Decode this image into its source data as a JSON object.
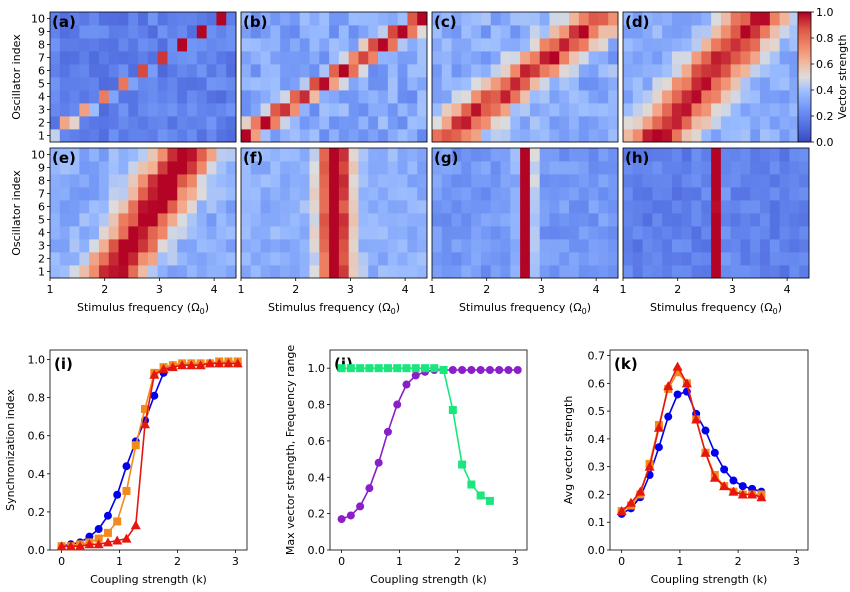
{
  "chart_data": [
    {
      "type": "heatmap",
      "panels": [
        "(a)",
        "(b)",
        "(c)",
        "(d)",
        "(e)",
        "(f)",
        "(g)",
        "(h)"
      ],
      "ylabel": "Oscillator index",
      "xlabel": "Stimulus frequency (Ω0)",
      "xlabel_main": "Stimulus frequency (Ω",
      "xlabel_sub": "0",
      "xlabel_end": ")",
      "yticks": [
        "1",
        "2",
        "3",
        "4",
        "5",
        "6",
        "7",
        "8",
        "9",
        "10"
      ],
      "xticks": [
        "1",
        "2",
        "3",
        "4"
      ],
      "xlim": [
        1,
        4.4
      ],
      "ylim": [
        0.5,
        10.5
      ],
      "colorbar": {
        "label": "Vector strength",
        "range": [
          0,
          1
        ],
        "ticks": [
          "0.0",
          "0.2",
          "0.4",
          "0.6",
          "0.8",
          "1.0"
        ],
        "colormap": "coolwarm"
      }
    },
    {
      "type": "line",
      "panel": "(i)",
      "xlabel": "Coupling strength (k)",
      "ylabel": "Synchronization index",
      "xlim": [
        -0.2,
        3.2
      ],
      "ylim": [
        0,
        1.05
      ],
      "xticks": [
        "0",
        "1",
        "2",
        "3"
      ],
      "yticks": [
        "0.0",
        "0.2",
        "0.4",
        "0.6",
        "0.8",
        "1.0"
      ],
      "x": [
        0,
        0.16,
        0.32,
        0.48,
        0.64,
        0.8,
        0.96,
        1.12,
        1.28,
        1.44,
        1.6,
        1.76,
        1.92,
        2.08,
        2.24,
        2.4,
        2.56,
        2.72,
        2.88,
        3.04
      ],
      "series": [
        {
          "marker": "circle",
          "color": "#0000ee",
          "values": [
            0.02,
            0.03,
            0.04,
            0.07,
            0.11,
            0.18,
            0.29,
            0.44,
            0.57,
            0.68,
            0.81,
            0.93,
            0.97,
            0.98,
            0.98,
            0.98,
            0.98,
            0.98,
            0.98,
            0.98
          ]
        },
        {
          "marker": "square",
          "color": "#f28a1e",
          "values": [
            0.02,
            0.02,
            0.03,
            0.04,
            0.06,
            0.09,
            0.15,
            0.31,
            0.55,
            0.74,
            0.93,
            0.96,
            0.97,
            0.98,
            0.98,
            0.98,
            0.98,
            0.99,
            0.99,
            0.99
          ]
        },
        {
          "marker": "triangle",
          "color": "#e6160f",
          "values": [
            0.02,
            0.02,
            0.02,
            0.03,
            0.03,
            0.04,
            0.05,
            0.06,
            0.13,
            0.66,
            0.92,
            0.95,
            0.96,
            0.97,
            0.97,
            0.97,
            0.98,
            0.98,
            0.98,
            0.98
          ]
        }
      ]
    },
    {
      "type": "line",
      "panel": "(j)",
      "xlabel": "Coupling strength (k)",
      "ylabel": "Max vector strength, Frequency range",
      "xlim": [
        -0.2,
        3.2
      ],
      "ylim": [
        0,
        1.1
      ],
      "xticks": [
        "0",
        "1",
        "2",
        "3"
      ],
      "yticks": [
        "0.0",
        "0.2",
        "0.4",
        "0.6",
        "0.8",
        "1.0"
      ],
      "x": [
        0,
        0.16,
        0.32,
        0.48,
        0.64,
        0.8,
        0.96,
        1.12,
        1.28,
        1.44,
        1.6,
        1.76,
        1.92,
        2.08,
        2.24,
        2.4,
        2.56,
        2.72,
        2.88,
        3.04
      ],
      "series": [
        {
          "marker": "circle",
          "color": "#8a1ec8",
          "values": [
            0.17,
            0.19,
            0.24,
            0.34,
            0.48,
            0.65,
            0.8,
            0.91,
            0.96,
            0.98,
            0.99,
            0.99,
            0.99,
            0.99,
            0.99,
            0.99,
            0.99,
            0.99,
            0.99,
            0.99
          ]
        },
        {
          "marker": "square",
          "color": "#19e67d",
          "values": [
            1.0,
            1.0,
            1.0,
            1.0,
            1.0,
            1.0,
            1.0,
            1.0,
            1.0,
            1.0,
            1.0,
            0.99,
            0.77,
            0.47,
            0.36,
            0.3,
            0.27,
            null,
            null,
            null
          ]
        }
      ]
    },
    {
      "type": "line",
      "panel": "(k)",
      "xlabel": "Coupling strength (k)",
      "ylabel": "Avg vector strength",
      "xlim": [
        -0.2,
        3.2
      ],
      "ylim": [
        0,
        0.72
      ],
      "xticks": [
        "0",
        "1",
        "2",
        "3"
      ],
      "yticks": [
        "0.0",
        "0.1",
        "0.2",
        "0.3",
        "0.4",
        "0.5",
        "0.6",
        "0.7"
      ],
      "x": [
        0,
        0.16,
        0.32,
        0.48,
        0.64,
        0.8,
        0.96,
        1.12,
        1.28,
        1.44,
        1.6,
        1.76,
        1.92,
        2.08,
        2.24,
        2.4,
        2.56,
        2.72,
        2.88,
        3.04
      ],
      "series": [
        {
          "marker": "circle",
          "color": "#0000ee",
          "values": [
            0.13,
            0.15,
            0.19,
            0.27,
            0.37,
            0.48,
            0.56,
            0.57,
            0.49,
            0.43,
            0.35,
            0.29,
            0.25,
            0.23,
            0.22,
            0.21,
            null,
            null,
            null,
            null
          ]
        },
        {
          "marker": "square",
          "color": "#f28a1e",
          "values": [
            0.14,
            0.16,
            0.2,
            0.31,
            0.45,
            0.58,
            0.64,
            0.6,
            0.47,
            0.35,
            0.27,
            0.23,
            0.21,
            0.2,
            0.2,
            0.2,
            null,
            null,
            null,
            null
          ]
        },
        {
          "marker": "triangle",
          "color": "#e6160f",
          "values": [
            0.14,
            0.17,
            0.21,
            0.3,
            0.44,
            0.59,
            0.66,
            0.6,
            0.47,
            0.35,
            0.26,
            0.23,
            0.21,
            0.2,
            0.2,
            0.19,
            null,
            null,
            null,
            null
          ]
        }
      ]
    }
  ]
}
